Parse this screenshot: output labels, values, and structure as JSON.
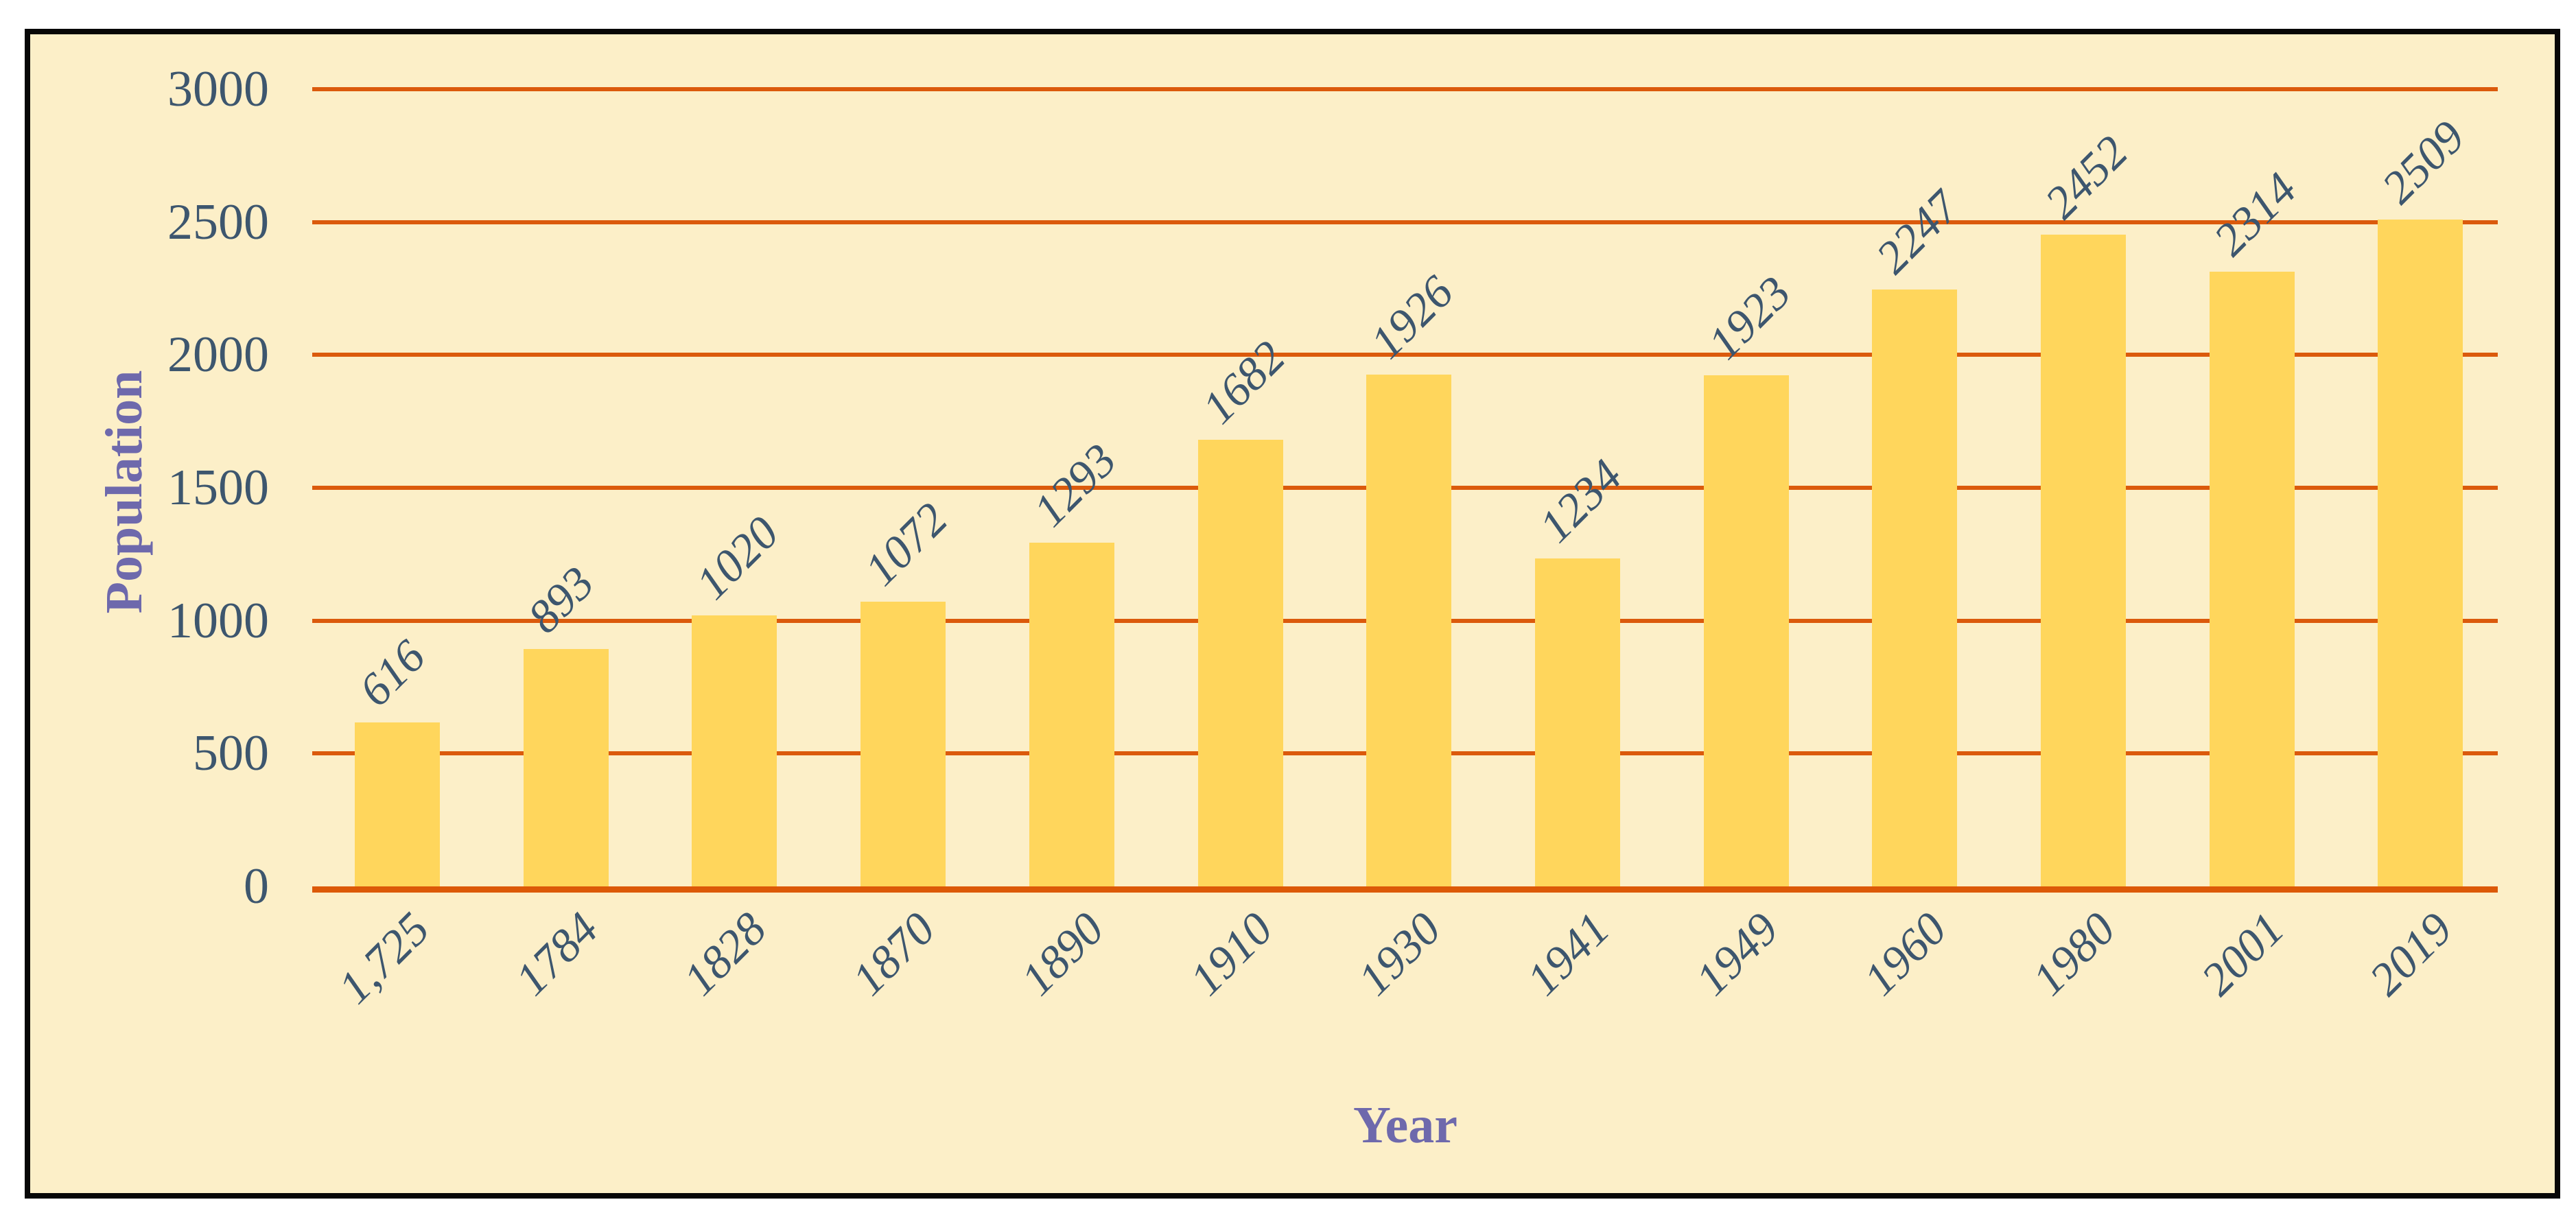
{
  "chart_data": {
    "type": "bar",
    "title": "",
    "xlabel": "Year",
    "ylabel": "Population",
    "categories": [
      "1,725",
      "1784",
      "1828",
      "1870",
      "1890",
      "1910",
      "1930",
      "1941",
      "1949",
      "1960",
      "1980",
      "2001",
      "2019"
    ],
    "values": [
      616,
      893,
      1020,
      1072,
      1293,
      1682,
      1926,
      1234,
      1923,
      2247,
      2452,
      2314,
      2509
    ],
    "data_labels": [
      "616",
      "893",
      "1020",
      "1072",
      "1293",
      "1682",
      "1926",
      "1234",
      "1923",
      "2247",
      "2452",
      "2314",
      "2509"
    ],
    "yticks": [
      "0",
      "500",
      "1000",
      "1500",
      "2000",
      "2500",
      "3000"
    ],
    "ylim": [
      0,
      3000
    ],
    "grid": "horizontal",
    "legend": "none",
    "bar_label_rotation_deg": 45,
    "x_tick_rotation_deg": 45,
    "colors": {
      "page_bg": "#FFFFFF",
      "plot_bg": "#FCEFC8",
      "frame_border": "#070707",
      "bar": "#FFD65C",
      "gridline": "#DB5A0C",
      "baseline": "#DC5907",
      "tick_text": "#3D566E",
      "data_label_text": "#3D566E",
      "axis_title_text": "#6E69AC"
    }
  }
}
